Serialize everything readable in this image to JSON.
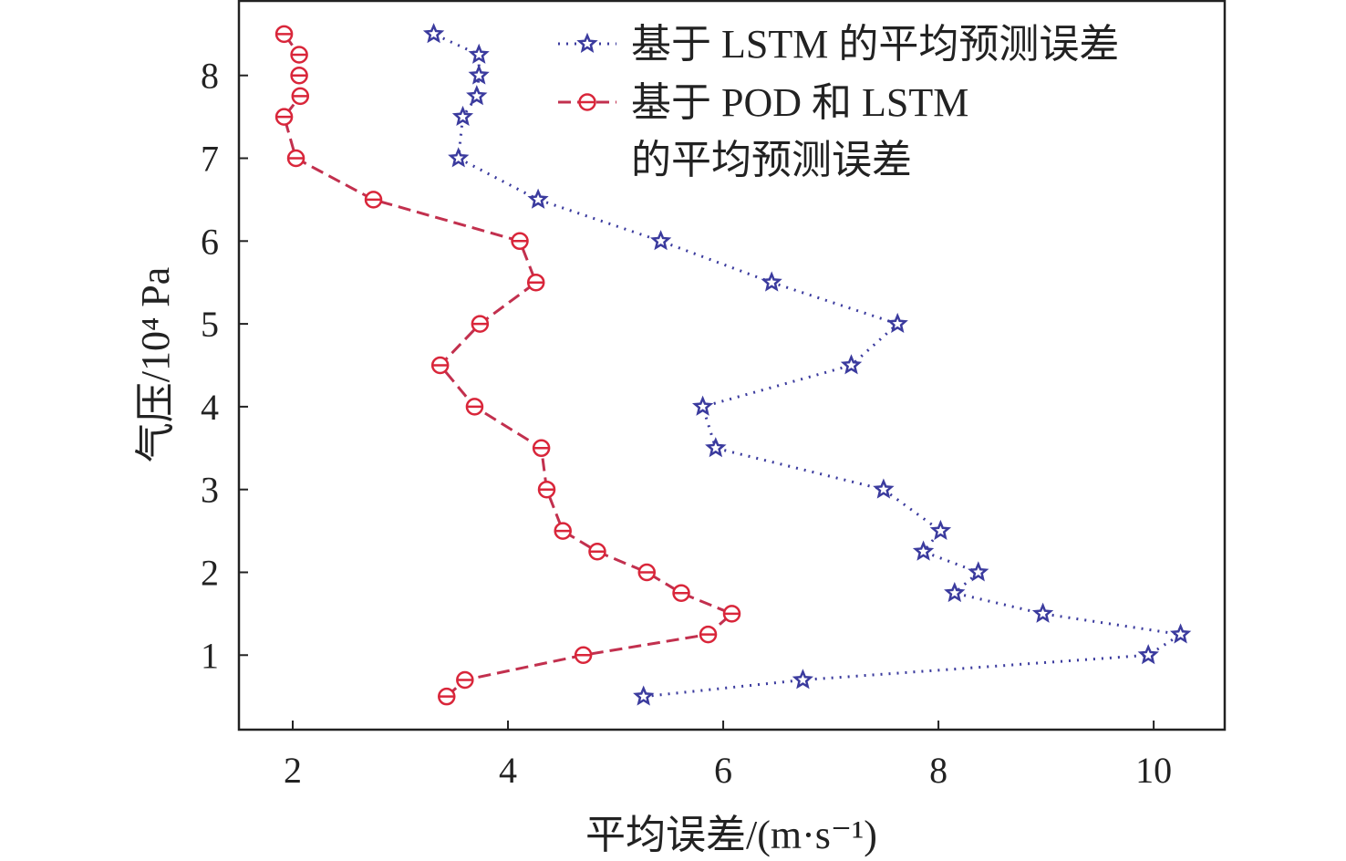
{
  "chart_data": {
    "type": "line",
    "title": "",
    "xlabel": "平均误差/(m·s⁻¹)",
    "ylabel": "气压/10⁴ Pa",
    "xlim": [
      1.5,
      10.66
    ],
    "ylim": [
      0.1,
      8.9
    ],
    "xticks": [
      "2",
      "4",
      "6",
      "8",
      "10"
    ],
    "yticks": [
      "1",
      "2",
      "3",
      "4",
      "5",
      "6",
      "7",
      "8"
    ],
    "grid": false,
    "legend_position": "top-right",
    "series": [
      {
        "name": "基于 LSTM 的平均预测误差",
        "color": "#3b3b9e",
        "line_style": "dotted",
        "marker": "star",
        "x": [
          5.26,
          6.74,
          9.95,
          10.25,
          8.97,
          8.15,
          8.37,
          7.86,
          8.02,
          7.49,
          5.93,
          5.81,
          7.19,
          7.62,
          6.45,
          5.42,
          4.28,
          3.54,
          3.58,
          3.71,
          3.73,
          3.73,
          3.31
        ],
        "y": [
          0.5,
          0.7,
          1.0,
          1.25,
          1.5,
          1.75,
          2.0,
          2.25,
          2.5,
          3.0,
          3.5,
          4.0,
          4.5,
          5.0,
          5.5,
          6.0,
          6.5,
          7.0,
          7.5,
          7.75,
          8.0,
          8.25,
          8.5
        ]
      },
      {
        "name_lines": [
          "基于 POD 和 LSTM",
          "的平均预测误差"
        ],
        "name": "基于 POD 和 LSTM 的平均预测误差",
        "color": "#d9263a",
        "line_color": "#c2304e",
        "line_style": "dashed",
        "marker": "circle",
        "x": [
          3.43,
          3.6,
          4.7,
          5.86,
          6.08,
          5.61,
          5.29,
          4.83,
          4.51,
          4.36,
          4.31,
          3.69,
          3.37,
          3.74,
          4.26,
          4.11,
          2.75,
          2.03,
          1.92,
          2.07,
          2.06,
          2.06,
          1.92
        ],
        "y": [
          0.5,
          0.7,
          1.0,
          1.25,
          1.5,
          1.75,
          2.0,
          2.25,
          2.5,
          3.0,
          3.5,
          4.0,
          4.5,
          5.0,
          5.5,
          6.0,
          6.5,
          7.0,
          7.5,
          7.75,
          8.0,
          8.25,
          8.5
        ]
      }
    ]
  }
}
